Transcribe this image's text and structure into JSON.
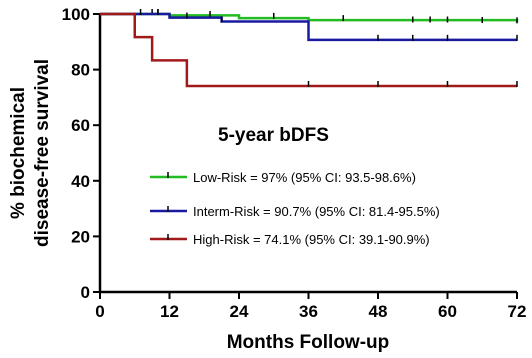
{
  "chart_data": {
    "type": "line",
    "subtype": "kaplan-meier step",
    "xlabel": "Months Follow-up",
    "ylabel_line1": "% biochemical",
    "ylabel_line2": "disease-free survival",
    "xlim": [
      0,
      72
    ],
    "ylim": [
      0,
      100
    ],
    "xticks": [
      "0",
      "12",
      "24",
      "36",
      "48",
      "60",
      "72"
    ],
    "yticks": [
      "0",
      "20",
      "40",
      "60",
      "80",
      "100"
    ],
    "grid": false,
    "legend_placement": "center",
    "legend_title": "5-year bDFS",
    "series": [
      {
        "name": "Low-Risk = 97% (95% CI: 93.5-98.6%)",
        "color": "#22bb22",
        "steps": [
          [
            0,
            100
          ],
          [
            12,
            99.5
          ],
          [
            24,
            98.5
          ],
          [
            36,
            97.8
          ],
          [
            72,
            97
          ]
        ],
        "censored": [
          [
            9,
            100
          ],
          [
            10,
            100
          ],
          [
            19,
            99.3
          ],
          [
            30,
            98.6
          ],
          [
            42,
            97.8
          ],
          [
            54,
            97.3
          ],
          [
            57,
            97.3
          ],
          [
            60,
            97.3
          ],
          [
            66,
            97.1
          ],
          [
            72,
            97
          ]
        ]
      },
      {
        "name": "Interm-Risk = 90.7% (95% CI: 81.4-95.5%)",
        "color": "#1a1aa0",
        "steps": [
          [
            0,
            100
          ],
          [
            12,
            98.7
          ],
          [
            21,
            97.3
          ],
          [
            36,
            90.7
          ],
          [
            72,
            90.7
          ]
        ],
        "censored": [
          [
            7,
            100
          ],
          [
            10,
            100
          ],
          [
            15,
            98.7
          ],
          [
            21,
            97.3
          ],
          [
            48,
            90.7
          ],
          [
            54,
            90.7
          ],
          [
            60,
            90.7
          ],
          [
            72,
            90.7
          ]
        ]
      },
      {
        "name": "High-Risk = 74.1% (95% CI: 39.1-90.9%)",
        "color": "#a01a1a",
        "steps": [
          [
            0,
            100
          ],
          [
            6,
            91.7
          ],
          [
            9,
            83.3
          ],
          [
            15,
            74.1
          ],
          [
            72,
            74.1
          ]
        ],
        "censored": [
          [
            36,
            74.1
          ],
          [
            48,
            74.1
          ],
          [
            60,
            74.1
          ],
          [
            72,
            74.1
          ]
        ]
      }
    ]
  }
}
